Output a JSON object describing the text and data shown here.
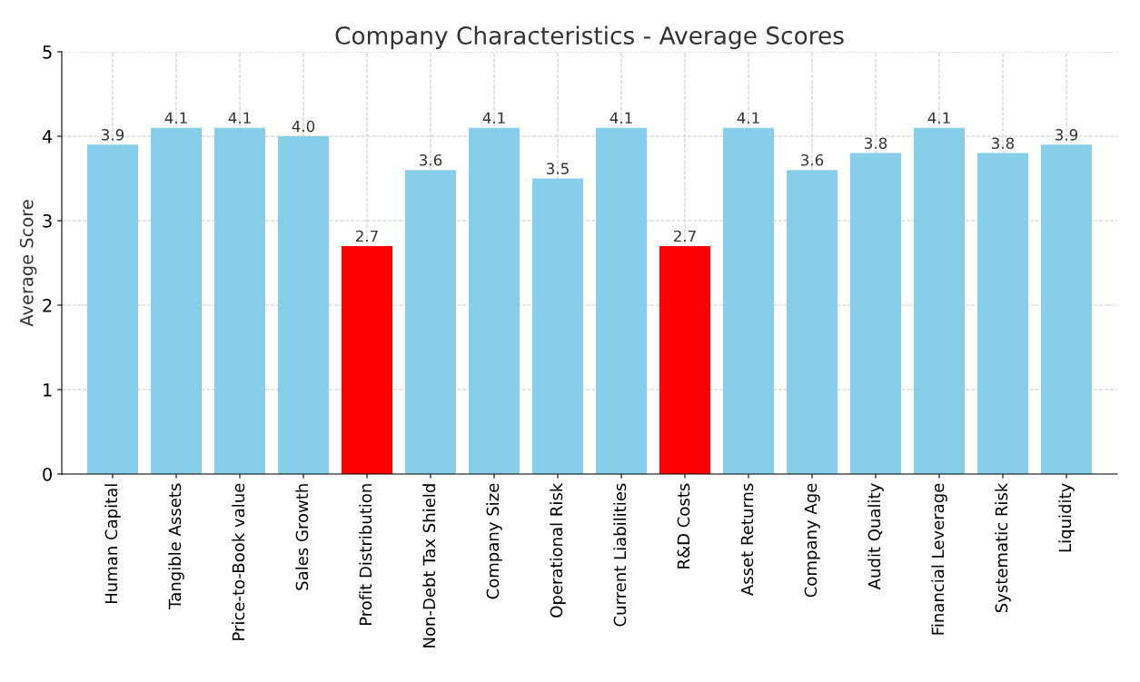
{
  "chart_data": {
    "type": "bar",
    "title": "Company Characteristics - Average Scores",
    "ylabel": "Average Score",
    "categories": [
      "Human Capital",
      "Tangible Assets",
      "Price-to-Book value",
      "Sales Growth",
      "Profit Distribution",
      "Non-Debt Tax Shield",
      "Company Size",
      "Operational Risk",
      "Current Liabilities",
      "R&D Costs",
      "Asset Returns",
      "Company Age",
      "Audit Quality",
      "Financial Leverage",
      "Systematic Risk",
      "Liquidity"
    ],
    "values": [
      3.9,
      4.1,
      4.1,
      4.0,
      2.7,
      3.6,
      4.1,
      3.5,
      4.1,
      2.7,
      4.1,
      3.6,
      3.8,
      4.1,
      3.8,
      3.9
    ],
    "value_labels": [
      "3.9",
      "4.1",
      "4.1",
      "4.0",
      "2.7",
      "3.6",
      "4.1",
      "3.5",
      "4.1",
      "2.7",
      "4.1",
      "3.6",
      "3.8",
      "4.1",
      "3.8",
      "3.9"
    ],
    "colors": [
      "#87ceeb",
      "#87ceeb",
      "#87ceeb",
      "#87ceeb",
      "#ff0000",
      "#87ceeb",
      "#87ceeb",
      "#87ceeb",
      "#87ceeb",
      "#ff0000",
      "#87ceeb",
      "#87ceeb",
      "#87ceeb",
      "#87ceeb",
      "#87ceeb",
      "#87ceeb"
    ],
    "ylim": [
      0,
      5
    ],
    "yticks": [
      0,
      1,
      2,
      3,
      4,
      5
    ],
    "grid": true
  }
}
